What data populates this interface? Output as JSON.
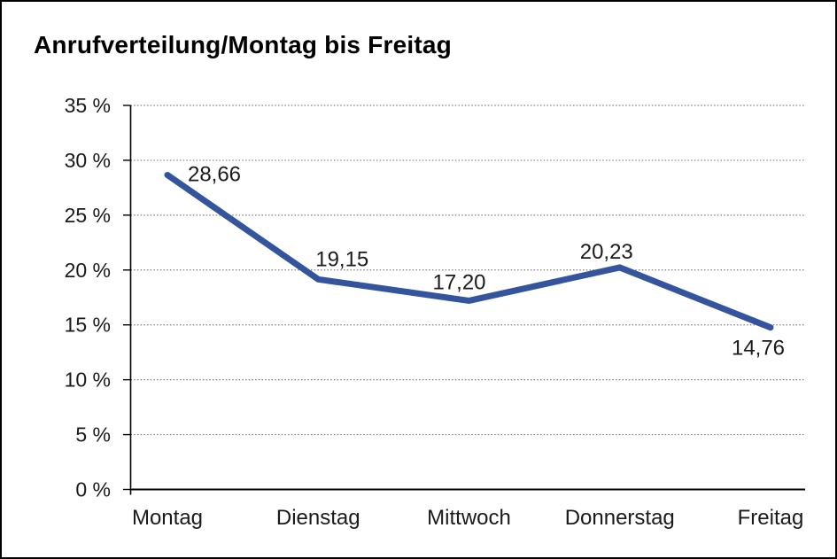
{
  "chart_data": {
    "type": "line",
    "title": "Anrufverteilung/Montag bis Freitag",
    "categories": [
      "Montag",
      "Dienstag",
      "Mittwoch",
      "Donnerstag",
      "Freitag"
    ],
    "series": [
      {
        "name": "Anrufverteilung",
        "values": [
          28.66,
          19.15,
          17.2,
          20.23,
          14.76
        ],
        "point_labels": [
          "28,66",
          "19,15",
          "17,20",
          "20,23",
          "14,76"
        ]
      }
    ],
    "xlabel": "",
    "ylabel": "",
    "ylim": [
      0,
      35
    ],
    "y_tick_step": 5,
    "y_ticks": [
      0,
      5,
      10,
      15,
      20,
      25,
      30,
      35
    ],
    "y_tick_labels": [
      "0 %",
      "5 %",
      "10 %",
      "15 %",
      "20 %",
      "25 %",
      "30 %",
      "35 %"
    ],
    "grid": "horizontal-dotted",
    "legend_position": "none",
    "colors": {
      "line": "#34559E",
      "grid": "#7f7f7f",
      "axis": "#000000",
      "text": "#1a1a1a",
      "background": "#ffffff",
      "border": "#000000"
    }
  }
}
